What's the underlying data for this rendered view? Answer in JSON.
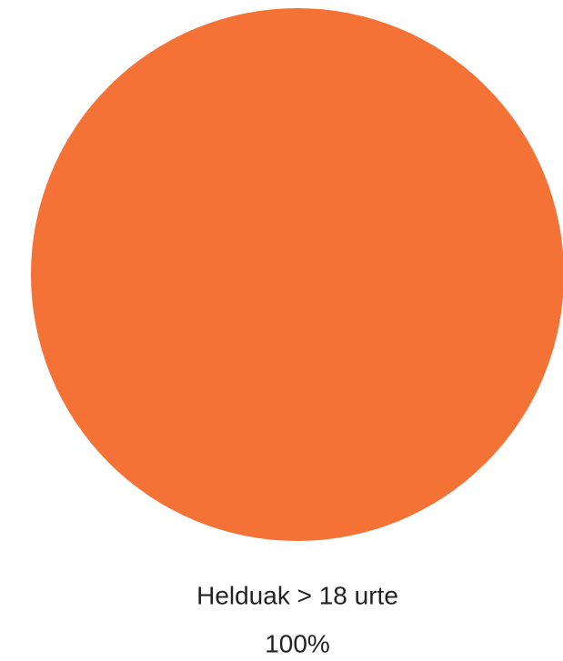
{
  "chart_data": {
    "type": "pie",
    "categories": [
      "Helduak > 18 urte"
    ],
    "values": [
      100
    ],
    "value_labels": [
      "100%"
    ],
    "colors": [
      "#f47236"
    ]
  }
}
